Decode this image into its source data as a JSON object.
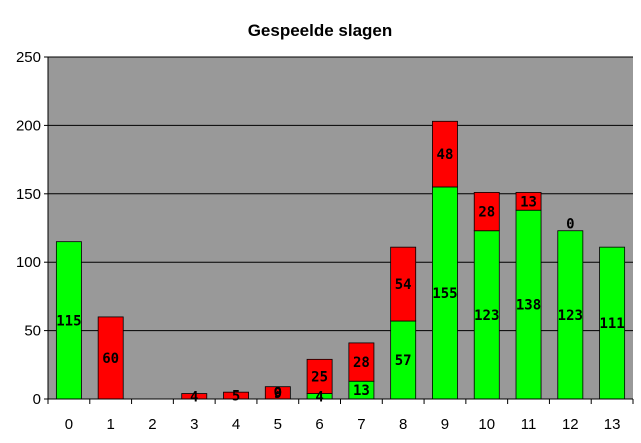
{
  "chart_data": {
    "type": "bar",
    "stacked": true,
    "title": "Gespeelde slagen",
    "xlabel": "",
    "ylabel": "",
    "categories": [
      "0",
      "1",
      "2",
      "3",
      "4",
      "5",
      "6",
      "7",
      "8",
      "9",
      "10",
      "11",
      "12",
      "13"
    ],
    "ylim": [
      0,
      250
    ],
    "yticks": [
      "0",
      "50",
      "100",
      "150",
      "200",
      "250"
    ],
    "grid": true,
    "legend": "none",
    "plot_background": "#999999",
    "series": [
      {
        "color": "#00ff00",
        "values": [
          115,
          0,
          0,
          0,
          0,
          0,
          4,
          13,
          57,
          155,
          123,
          138,
          123,
          111
        ],
        "labels": [
          "115",
          "",
          "",
          "",
          "",
          "0",
          "4",
          "13",
          "57",
          "155",
          "123",
          "138",
          "123",
          "111"
        ]
      },
      {
        "color": "#ff0000",
        "values": [
          0,
          60,
          0,
          4,
          5,
          9,
          25,
          28,
          54,
          48,
          28,
          13,
          0,
          0
        ],
        "labels": [
          "",
          "60",
          "",
          "4",
          "5",
          "9",
          "25",
          "28",
          "54",
          "48",
          "28",
          "13",
          "0",
          ""
        ]
      }
    ]
  }
}
